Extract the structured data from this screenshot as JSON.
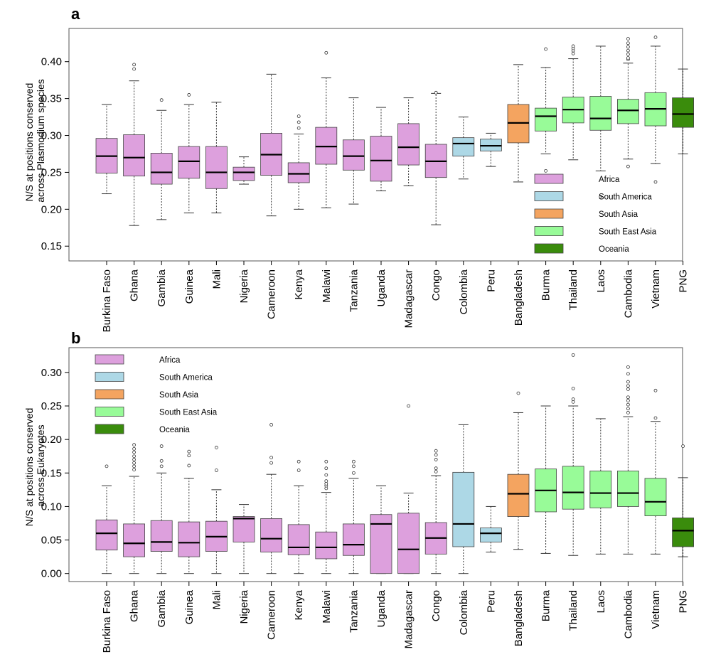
{
  "colors": {
    "Africa": "#dda0dd",
    "South America": "#add8e6",
    "South Asia": "#f4a460",
    "South East Asia": "#98fb98",
    "Oceania": "#3a8c0c"
  },
  "chart_data": [
    {
      "type": "boxplot",
      "panel": "a",
      "ylabel": "N/S at positions conserved\nacross Plasmodium species",
      "ylim": [
        0.13,
        0.445
      ],
      "yticks": [
        "0.15",
        "0.20",
        "0.25",
        "0.30",
        "0.35",
        "0.40"
      ],
      "legend": [
        "Africa",
        "South America",
        "South Asia",
        "South East Asia",
        "Oceania"
      ],
      "legend_position": "bottom-right",
      "categories": [
        "Burkina Faso",
        "Ghana",
        "Gambia",
        "Guinea",
        "Mali",
        "Nigeria",
        "Cameroon",
        "Kenya",
        "Malawi",
        "Tanzania",
        "Uganda",
        "Madagascar",
        "Congo",
        "Colombia",
        "Peru",
        "Bangladesh",
        "Burma",
        "Thailand",
        "Laos",
        "Cambodia",
        "Vietnam",
        "PNG"
      ],
      "regions": [
        "Africa",
        "Africa",
        "Africa",
        "Africa",
        "Africa",
        "Africa",
        "Africa",
        "Africa",
        "Africa",
        "Africa",
        "Africa",
        "Africa",
        "Africa",
        "South America",
        "South America",
        "South Asia",
        "South East Asia",
        "South East Asia",
        "South East Asia",
        "South East Asia",
        "South East Asia",
        "Oceania"
      ],
      "boxes": [
        {
          "min": 0.221,
          "q1": 0.249,
          "median": 0.272,
          "q3": 0.296,
          "max": 0.342,
          "outliers": []
        },
        {
          "min": 0.178,
          "q1": 0.245,
          "median": 0.27,
          "q3": 0.301,
          "max": 0.374,
          "outliers": [
            0.39,
            0.396
          ]
        },
        {
          "min": 0.186,
          "q1": 0.234,
          "median": 0.25,
          "q3": 0.276,
          "max": 0.334,
          "outliers": [
            0.348
          ]
        },
        {
          "min": 0.195,
          "q1": 0.242,
          "median": 0.265,
          "q3": 0.285,
          "max": 0.342,
          "outliers": [
            0.355
          ]
        },
        {
          "min": 0.195,
          "q1": 0.228,
          "median": 0.25,
          "q3": 0.285,
          "max": 0.345,
          "outliers": []
        },
        {
          "min": 0.234,
          "q1": 0.239,
          "median": 0.25,
          "q3": 0.257,
          "max": 0.271,
          "outliers": []
        },
        {
          "min": 0.191,
          "q1": 0.246,
          "median": 0.274,
          "q3": 0.303,
          "max": 0.383,
          "outliers": []
        },
        {
          "min": 0.2,
          "q1": 0.236,
          "median": 0.248,
          "q3": 0.263,
          "max": 0.302,
          "outliers": [
            0.31,
            0.318,
            0.326
          ]
        },
        {
          "min": 0.202,
          "q1": 0.261,
          "median": 0.285,
          "q3": 0.311,
          "max": 0.378,
          "outliers": [
            0.412
          ]
        },
        {
          "min": 0.207,
          "q1": 0.253,
          "median": 0.272,
          "q3": 0.294,
          "max": 0.351,
          "outliers": []
        },
        {
          "min": 0.225,
          "q1": 0.238,
          "median": 0.266,
          "q3": 0.299,
          "max": 0.338,
          "outliers": []
        },
        {
          "min": 0.232,
          "q1": 0.26,
          "median": 0.284,
          "q3": 0.316,
          "max": 0.351,
          "outliers": []
        },
        {
          "min": 0.179,
          "q1": 0.243,
          "median": 0.265,
          "q3": 0.288,
          "max": 0.357,
          "outliers": [
            0.358
          ]
        },
        {
          "min": 0.241,
          "q1": 0.272,
          "median": 0.289,
          "q3": 0.297,
          "max": 0.325,
          "outliers": []
        },
        {
          "min": 0.258,
          "q1": 0.279,
          "median": 0.286,
          "q3": 0.295,
          "max": 0.303,
          "outliers": []
        },
        {
          "min": 0.237,
          "q1": 0.29,
          "median": 0.317,
          "q3": 0.342,
          "max": 0.396,
          "outliers": []
        },
        {
          "min": 0.275,
          "q1": 0.306,
          "median": 0.326,
          "q3": 0.337,
          "max": 0.392,
          "outliers": [
            0.252,
            0.417
          ]
        },
        {
          "min": 0.267,
          "q1": 0.317,
          "median": 0.335,
          "q3": 0.352,
          "max": 0.404,
          "outliers": [
            0.411,
            0.415,
            0.418,
            0.421
          ]
        },
        {
          "min": 0.252,
          "q1": 0.307,
          "median": 0.323,
          "q3": 0.353,
          "max": 0.421,
          "outliers": [
            0.217
          ]
        },
        {
          "min": 0.268,
          "q1": 0.316,
          "median": 0.334,
          "q3": 0.349,
          "max": 0.398,
          "outliers": [
            0.258,
            0.403,
            0.405,
            0.41,
            0.415,
            0.42,
            0.425,
            0.431
          ]
        },
        {
          "min": 0.262,
          "q1": 0.313,
          "median": 0.336,
          "q3": 0.358,
          "max": 0.421,
          "outliers": [
            0.237,
            0.433
          ]
        },
        {
          "min": 0.275,
          "q1": 0.311,
          "median": 0.329,
          "q3": 0.351,
          "max": 0.39,
          "outliers": []
        }
      ]
    },
    {
      "type": "boxplot",
      "panel": "b",
      "ylabel": "N/S at positions conserved\nacross Eukaryotes",
      "ylim": [
        -0.012,
        0.337
      ],
      "yticks": [
        "0.00",
        "0.05",
        "0.10",
        "0.15",
        "0.20",
        "0.25",
        "0.30"
      ],
      "legend": [
        "Africa",
        "South America",
        "South Asia",
        "South East Asia",
        "Oceania"
      ],
      "legend_position": "top-left",
      "categories": [
        "Burkina Faso",
        "Ghana",
        "Gambia",
        "Guinea",
        "Mali",
        "Nigeria",
        "Cameroon",
        "Kenya",
        "Malawi",
        "Tanzania",
        "Uganda",
        "Madagascar",
        "Congo",
        "Colombia",
        "Peru",
        "Bangladesh",
        "Burma",
        "Thailand",
        "Laos",
        "Cambodia",
        "Vietnam",
        "PNG"
      ],
      "regions": [
        "Africa",
        "Africa",
        "Africa",
        "Africa",
        "Africa",
        "Africa",
        "Africa",
        "Africa",
        "Africa",
        "Africa",
        "Africa",
        "Africa",
        "Africa",
        "South America",
        "South America",
        "South Asia",
        "South East Asia",
        "South East Asia",
        "South East Asia",
        "South East Asia",
        "South East Asia",
        "Oceania"
      ],
      "boxes": [
        {
          "min": 0.0,
          "q1": 0.035,
          "median": 0.06,
          "q3": 0.08,
          "max": 0.131,
          "outliers": [
            0.16
          ]
        },
        {
          "min": 0.0,
          "q1": 0.025,
          "median": 0.045,
          "q3": 0.074,
          "max": 0.145,
          "outliers": [
            0.155,
            0.16,
            0.165,
            0.17,
            0.175,
            0.181,
            0.186,
            0.192
          ]
        },
        {
          "min": 0.0,
          "q1": 0.033,
          "median": 0.047,
          "q3": 0.079,
          "max": 0.15,
          "outliers": [
            0.16,
            0.168,
            0.19
          ]
        },
        {
          "min": 0.0,
          "q1": 0.025,
          "median": 0.046,
          "q3": 0.077,
          "max": 0.142,
          "outliers": [
            0.161,
            0.176,
            0.182
          ]
        },
        {
          "min": 0.0,
          "q1": 0.033,
          "median": 0.055,
          "q3": 0.078,
          "max": 0.125,
          "outliers": [
            0.154,
            0.188
          ]
        },
        {
          "min": 0.0,
          "q1": 0.047,
          "median": 0.082,
          "q3": 0.085,
          "max": 0.103,
          "outliers": []
        },
        {
          "min": 0.0,
          "q1": 0.032,
          "median": 0.052,
          "q3": 0.082,
          "max": 0.148,
          "outliers": [
            0.165,
            0.173,
            0.222
          ]
        },
        {
          "min": 0.0,
          "q1": 0.028,
          "median": 0.039,
          "q3": 0.073,
          "max": 0.131,
          "outliers": [
            0.154,
            0.167
          ]
        },
        {
          "min": 0.0,
          "q1": 0.022,
          "median": 0.039,
          "q3": 0.062,
          "max": 0.121,
          "outliers": [
            0.127,
            0.131,
            0.134,
            0.138,
            0.147,
            0.157,
            0.167
          ]
        },
        {
          "min": 0.0,
          "q1": 0.027,
          "median": 0.043,
          "q3": 0.074,
          "max": 0.142,
          "outliers": [
            0.15,
            0.16,
            0.167
          ]
        },
        {
          "min": 0.0,
          "q1": 0.0,
          "median": 0.074,
          "q3": 0.088,
          "max": 0.131,
          "outliers": []
        },
        {
          "min": 0.0,
          "q1": 0.0,
          "median": 0.036,
          "q3": 0.09,
          "max": 0.12,
          "outliers": [
            0.25
          ]
        },
        {
          "min": 0.0,
          "q1": 0.029,
          "median": 0.053,
          "q3": 0.076,
          "max": 0.146,
          "outliers": [
            0.152,
            0.157,
            0.17,
            0.177,
            0.183
          ]
        },
        {
          "min": 0.0,
          "q1": 0.04,
          "median": 0.074,
          "q3": 0.151,
          "max": 0.222,
          "outliers": []
        },
        {
          "min": 0.032,
          "q1": 0.047,
          "median": 0.06,
          "q3": 0.068,
          "max": 0.1,
          "outliers": []
        },
        {
          "min": 0.036,
          "q1": 0.085,
          "median": 0.119,
          "q3": 0.148,
          "max": 0.24,
          "outliers": [
            0.269
          ]
        },
        {
          "min": 0.03,
          "q1": 0.092,
          "median": 0.124,
          "q3": 0.156,
          "max": 0.25,
          "outliers": []
        },
        {
          "min": 0.027,
          "q1": 0.096,
          "median": 0.121,
          "q3": 0.16,
          "max": 0.25,
          "outliers": [
            0.256,
            0.26,
            0.276,
            0.326
          ]
        },
        {
          "min": 0.029,
          "q1": 0.098,
          "median": 0.12,
          "q3": 0.153,
          "max": 0.231,
          "outliers": []
        },
        {
          "min": 0.029,
          "q1": 0.1,
          "median": 0.12,
          "q3": 0.153,
          "max": 0.234,
          "outliers": [
            0.24,
            0.246,
            0.252,
            0.258,
            0.263,
            0.275,
            0.28,
            0.286,
            0.298,
            0.308
          ]
        },
        {
          "min": 0.029,
          "q1": 0.086,
          "median": 0.107,
          "q3": 0.142,
          "max": 0.227,
          "outliers": [
            0.232,
            0.273
          ]
        },
        {
          "min": 0.025,
          "q1": 0.04,
          "median": 0.064,
          "q3": 0.083,
          "max": 0.143,
          "outliers": [
            0.19
          ]
        }
      ]
    }
  ]
}
